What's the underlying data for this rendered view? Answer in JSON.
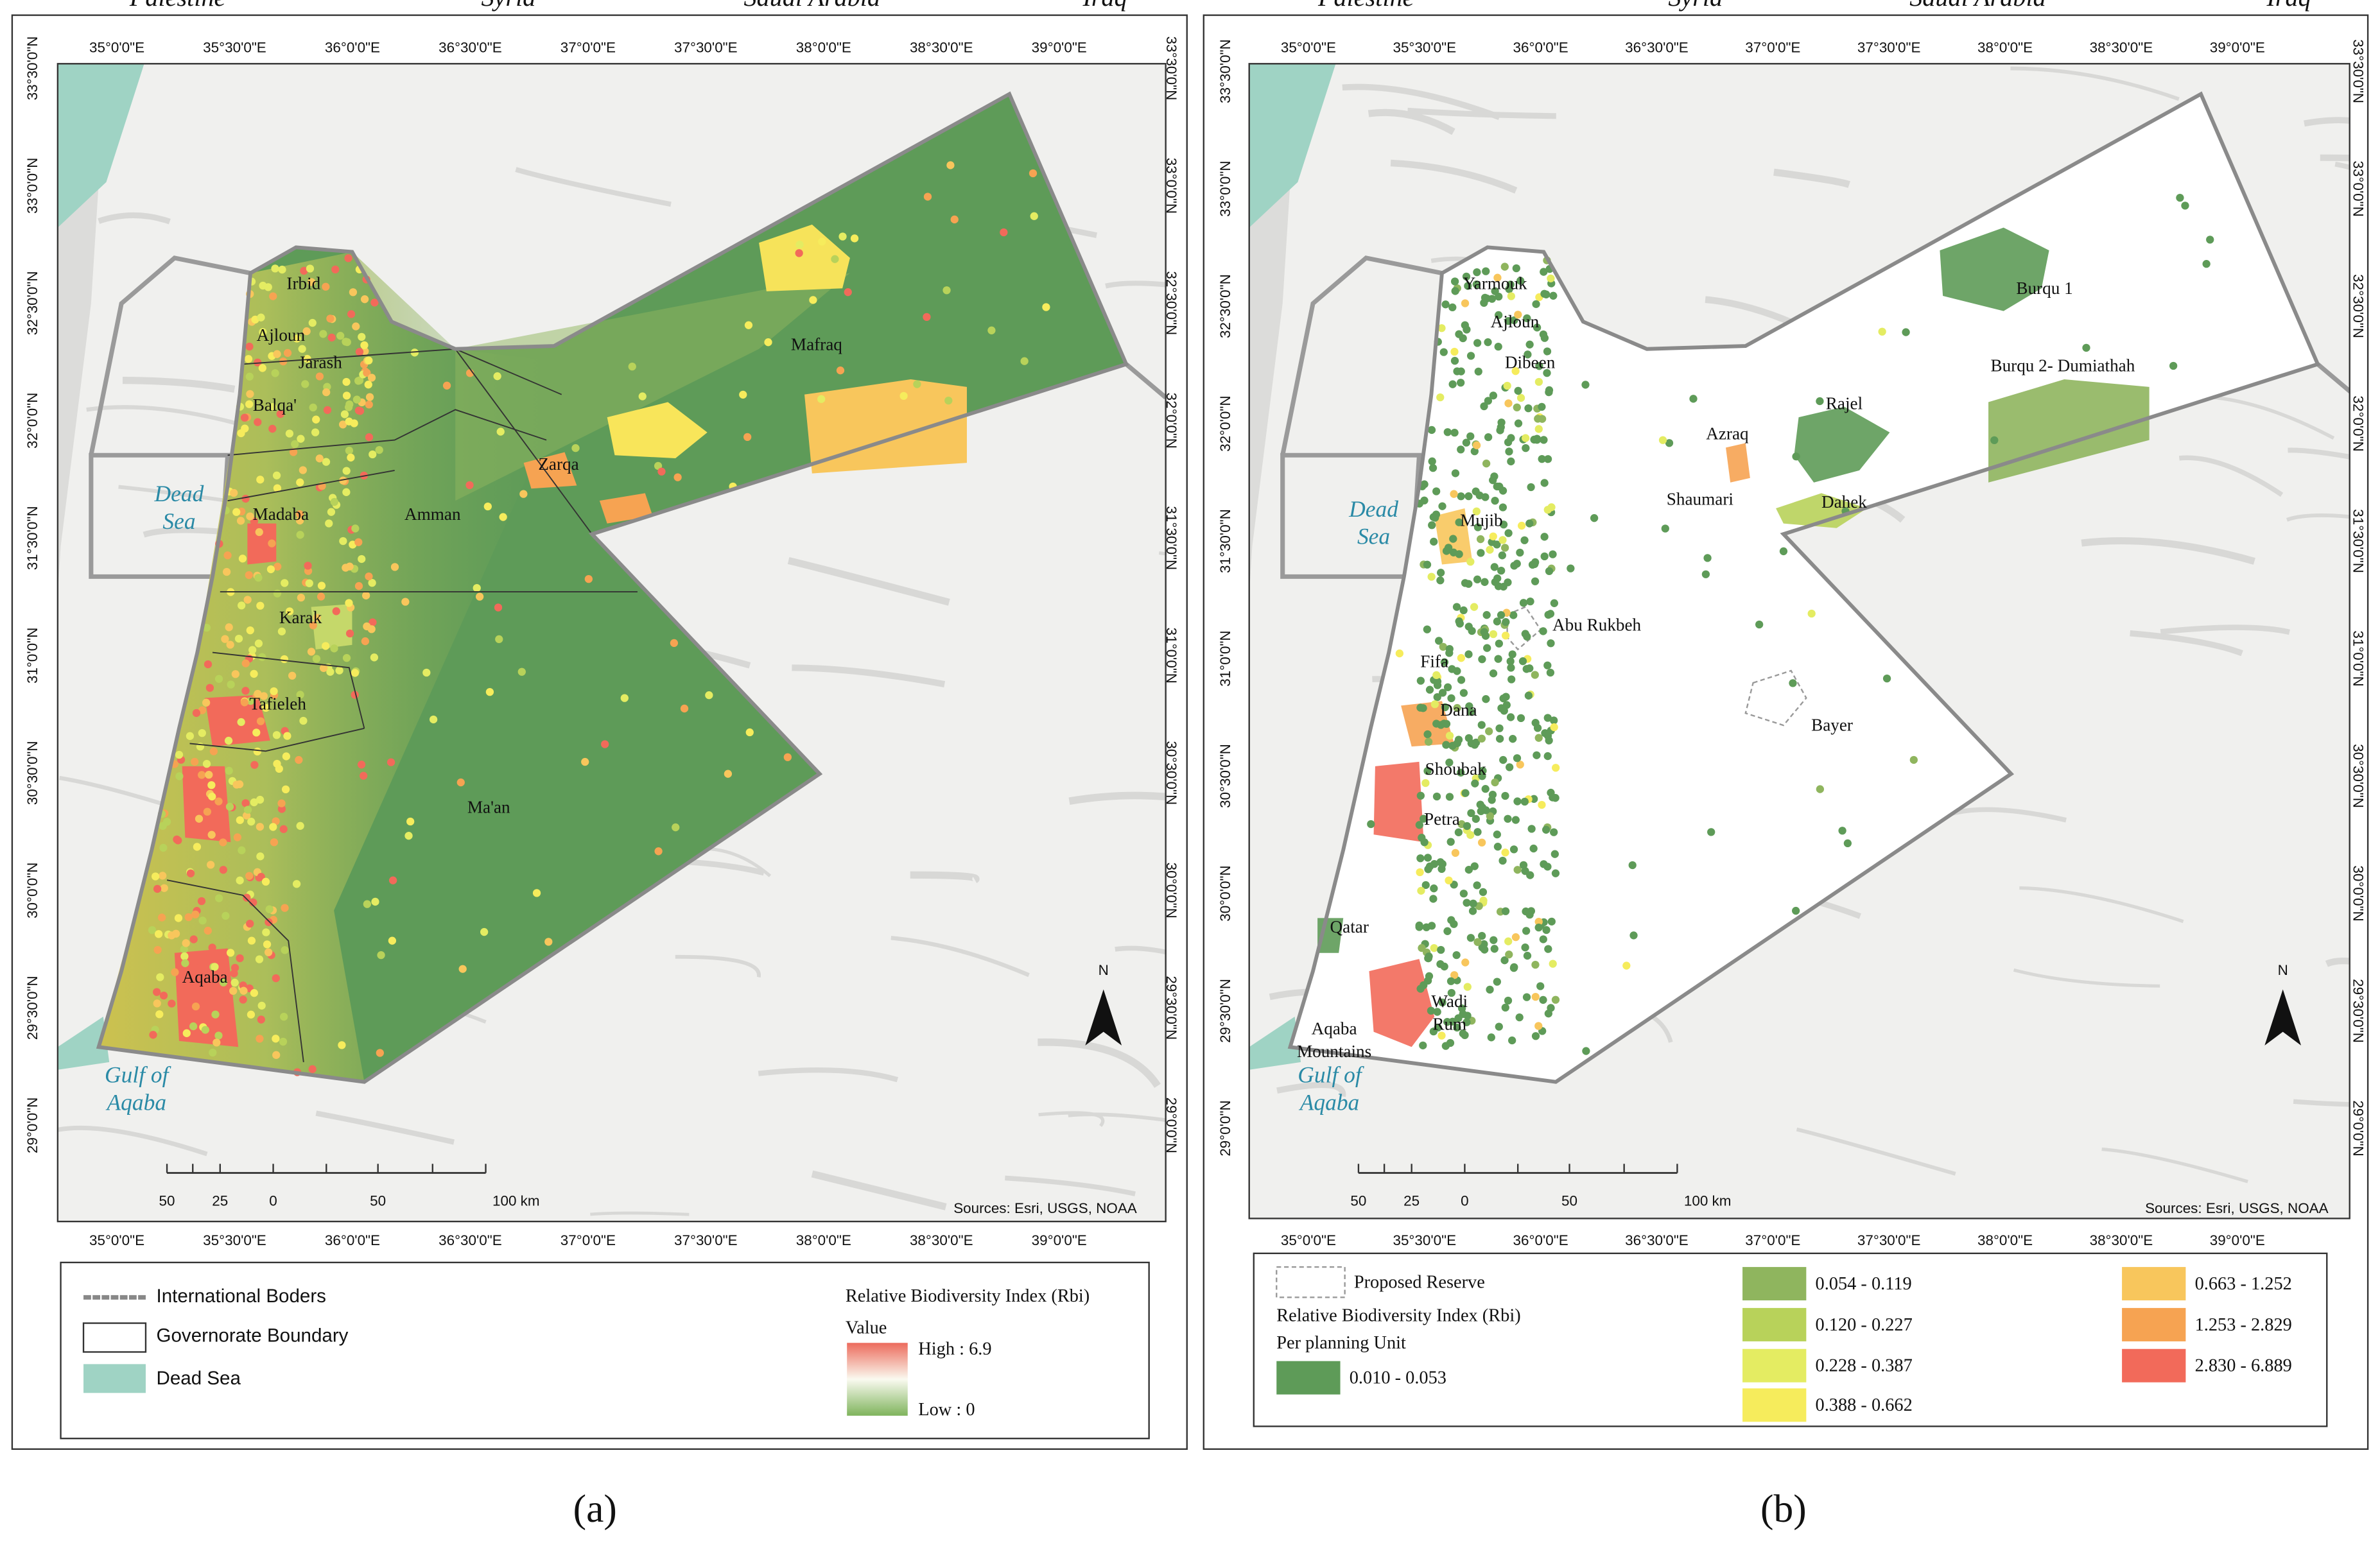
{
  "panels": [
    {
      "caption": "(a)",
      "x_labels": [
        "35°0'0\"E",
        "35°30'0\"E",
        "36°0'0\"E",
        "36°30'0\"E",
        "37°0'0\"E",
        "37°30'0\"E",
        "38°0'0\"E",
        "38°30'0\"E",
        "39°0'0\"E"
      ],
      "y_labels": [
        "33°30'0\"N",
        "33°0'0\"N",
        "32°30'0\"N",
        "32°0'0\"N",
        "31°30'0\"N",
        "31°0'0\"N",
        "30°30'0\"N",
        "30°0'0\"N",
        "29°30'0\"N",
        "29°0'0\"N"
      ],
      "countries": [
        {
          "lines": [
            "Syria"
          ]
        },
        {
          "lines": [
            "Iraq"
          ]
        },
        {
          "lines": [
            "Palestine"
          ]
        },
        {
          "lines": [
            "Saudi Arabia"
          ]
        }
      ],
      "water": [
        {
          "lines": [
            "Dead",
            "Sea"
          ]
        },
        {
          "lines": [
            "Gulf of",
            "Aqaba"
          ]
        }
      ],
      "places": [
        {
          "lines": [
            "Irbid"
          ]
        },
        {
          "lines": [
            "Ajloun"
          ]
        },
        {
          "lines": [
            "Jarash"
          ]
        },
        {
          "lines": [
            "Balqa'"
          ]
        },
        {
          "lines": [
            "Madaba"
          ]
        },
        {
          "lines": [
            "Amman"
          ]
        },
        {
          "lines": [
            "Zarqa"
          ]
        },
        {
          "lines": [
            "Mafraq"
          ]
        },
        {
          "lines": [
            "Karak"
          ]
        },
        {
          "lines": [
            "Tafieleh"
          ]
        },
        {
          "lines": [
            "Ma'an"
          ]
        },
        {
          "lines": [
            "Aqaba"
          ]
        }
      ],
      "scale_bar": [
        "50",
        "25",
        "0",
        "50",
        "100 km"
      ],
      "sources": "Sources: Esri, USGS, NOAA",
      "north": "N",
      "legend": {
        "items": [
          "International Boders",
          "Governorate Boundary",
          "Dead Sea"
        ],
        "title": "Relative Biodiversity Index (Rbi)",
        "value_label": "Value",
        "high": "High : 6.9",
        "low": "Low : 0"
      }
    },
    {
      "caption": "(b)",
      "x_labels": [
        "35°0'0\"E",
        "35°30'0\"E",
        "36°0'0\"E",
        "36°30'0\"E",
        "37°0'0\"E",
        "37°30'0\"E",
        "38°0'0\"E",
        "38°30'0\"E",
        "39°0'0\"E"
      ],
      "y_labels": [
        "33°30'0\"N",
        "33°0'0\"N",
        "32°30'0\"N",
        "32°0'0\"N",
        "31°30'0\"N",
        "31°0'0\"N",
        "30°30'0\"N",
        "30°0'0\"N",
        "29°30'0\"N",
        "29°0'0\"N"
      ],
      "countries": [
        {
          "lines": [
            "Syria"
          ]
        },
        {
          "lines": [
            "Iraq"
          ]
        },
        {
          "lines": [
            "Palestine"
          ]
        },
        {
          "lines": [
            "Saudi Arabia"
          ]
        }
      ],
      "water": [
        {
          "lines": [
            "Dead",
            "Sea"
          ]
        },
        {
          "lines": [
            "Gulf of",
            "Aqaba"
          ]
        }
      ],
      "places": [
        {
          "lines": [
            "Yarmouk"
          ]
        },
        {
          "lines": [
            "Ajloun"
          ]
        },
        {
          "lines": [
            "Dibeen"
          ]
        },
        {
          "lines": [
            "Azraq"
          ]
        },
        {
          "lines": [
            "Rajel"
          ]
        },
        {
          "lines": [
            "Burqu 1"
          ]
        },
        {
          "lines": [
            "Burqu 2- Dumiathah"
          ]
        },
        {
          "lines": [
            "Shaumari"
          ]
        },
        {
          "lines": [
            "Dahek"
          ]
        },
        {
          "lines": [
            "Mujib"
          ]
        },
        {
          "lines": [
            "Abu Rukbeh"
          ]
        },
        {
          "lines": [
            "Fifa"
          ]
        },
        {
          "lines": [
            "Dana"
          ]
        },
        {
          "lines": [
            "Bayer"
          ]
        },
        {
          "lines": [
            "Shoubak"
          ]
        },
        {
          "lines": [
            "Petra"
          ]
        },
        {
          "lines": [
            "Qatar"
          ]
        },
        {
          "lines": [
            "Wadi",
            "Rum"
          ]
        },
        {
          "lines": [
            "Aqaba",
            "Mountains"
          ]
        }
      ],
      "scale_bar": [
        "50",
        "25",
        "0",
        "50",
        "100 km"
      ],
      "sources": "Sources: Esri, USGS, NOAA",
      "north": "N",
      "legend": {
        "proposed": "Proposed Reserve",
        "title": "Relative Biodiversity Index (Rbi)",
        "subtitle": "Per planning Unit",
        "classes": [
          {
            "label": "0.010 - 0.053",
            "color": "#5e9b58"
          },
          {
            "label": "0.054 - 0.119",
            "color": "#8fb55e"
          },
          {
            "label": "0.120 - 0.227",
            "color": "#b8d25a"
          },
          {
            "label": "0.228 - 0.387",
            "color": "#e4ec62"
          },
          {
            "label": "0.388 - 0.662",
            "color": "#f6ec5c"
          },
          {
            "label": "0.663 - 1.252",
            "color": "#f8c65c"
          },
          {
            "label": "1.253 - 2.829",
            "color": "#f6a352"
          },
          {
            "label": "2.830 - 6.889",
            "color": "#f26a5a"
          }
        ]
      }
    }
  ]
}
